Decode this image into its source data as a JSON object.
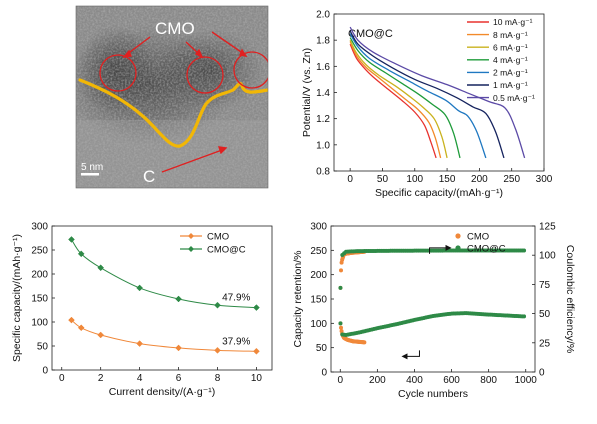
{
  "tem": {
    "label_top": "CMO",
    "label_bottom": "C",
    "scale_bar": "5 nm"
  },
  "chart_data": [
    {
      "id": "discharge",
      "type": "line",
      "title": "",
      "inset_label": "CMO@C",
      "xlabel": "Specific capacity/(mAh·g⁻¹)",
      "ylabel": "Potential/V (vs. Zn)",
      "xlim": [
        -25,
        300
      ],
      "ylim": [
        0.8,
        2.0
      ],
      "xticks": [
        0,
        50,
        100,
        150,
        200,
        250,
        300
      ],
      "yticks": [
        0.8,
        1.0,
        1.2,
        1.4,
        1.6,
        1.8,
        2.0
      ],
      "legend_position": "top-right",
      "series": [
        {
          "name": "10 mA·g⁻¹",
          "color": "#e8322e",
          "points": [
            [
              0,
              1.77
            ],
            [
              10,
              1.66
            ],
            [
              25,
              1.57
            ],
            [
              40,
              1.5
            ],
            [
              60,
              1.42
            ],
            [
              80,
              1.34
            ],
            [
              100,
              1.25
            ],
            [
              115,
              1.15
            ],
            [
              125,
              1.02
            ],
            [
              133,
              0.9
            ]
          ]
        },
        {
          "name": "8 mA·g⁻¹",
          "color": "#f28a2a",
          "points": [
            [
              0,
              1.79
            ],
            [
              10,
              1.68
            ],
            [
              25,
              1.59
            ],
            [
              45,
              1.51
            ],
            [
              65,
              1.43
            ],
            [
              85,
              1.35
            ],
            [
              105,
              1.27
            ],
            [
              122,
              1.17
            ],
            [
              132,
              1.05
            ],
            [
              140,
              0.9
            ]
          ]
        },
        {
          "name": "6 mA·g⁻¹",
          "color": "#c9b21e",
          "points": [
            [
              0,
              1.8
            ],
            [
              10,
              1.7
            ],
            [
              25,
              1.61
            ],
            [
              45,
              1.53
            ],
            [
              70,
              1.45
            ],
            [
              92,
              1.37
            ],
            [
              112,
              1.29
            ],
            [
              130,
              1.2
            ],
            [
              142,
              1.06
            ],
            [
              150,
              0.9
            ]
          ]
        },
        {
          "name": "4 mA·g⁻¹",
          "color": "#1e9b3a",
          "points": [
            [
              0,
              1.82
            ],
            [
              12,
              1.72
            ],
            [
              30,
              1.63
            ],
            [
              55,
              1.55
            ],
            [
              80,
              1.47
            ],
            [
              105,
              1.39
            ],
            [
              127,
              1.31
            ],
            [
              147,
              1.23
            ],
            [
              160,
              1.09
            ],
            [
              170,
              0.9
            ]
          ]
        },
        {
          "name": "2 mA·g⁻¹",
          "color": "#1f78c1",
          "points": [
            [
              0,
              1.85
            ],
            [
              12,
              1.75
            ],
            [
              30,
              1.66
            ],
            [
              60,
              1.57
            ],
            [
              90,
              1.49
            ],
            [
              120,
              1.41
            ],
            [
              148,
              1.34
            ],
            [
              168,
              1.26
            ],
            [
              182,
              1.22
            ],
            [
              196,
              1.1
            ],
            [
              210,
              0.9
            ]
          ]
        },
        {
          "name": "1 mA·g⁻¹",
          "color": "#15235e",
          "points": [
            [
              0,
              1.87
            ],
            [
              12,
              1.77
            ],
            [
              35,
              1.68
            ],
            [
              65,
              1.59
            ],
            [
              100,
              1.5
            ],
            [
              135,
              1.43
            ],
            [
              165,
              1.36
            ],
            [
              190,
              1.29
            ],
            [
              210,
              1.24
            ],
            [
              225,
              1.1
            ],
            [
              238,
              0.9
            ]
          ]
        },
        {
          "name": "0.5 mA·g⁻¹",
          "color": "#5b4aa6",
          "points": [
            [
              0,
              1.9
            ],
            [
              12,
              1.8
            ],
            [
              35,
              1.71
            ],
            [
              70,
              1.62
            ],
            [
              110,
              1.53
            ],
            [
              150,
              1.46
            ],
            [
              185,
              1.39
            ],
            [
              215,
              1.33
            ],
            [
              240,
              1.28
            ],
            [
              256,
              1.12
            ],
            [
              270,
              0.9
            ]
          ]
        }
      ]
    },
    {
      "id": "rate",
      "type": "line",
      "title": "",
      "xlabel": "Current density/(A·g⁻¹)",
      "ylabel": "Specific capacity/(mAh·g⁻¹)",
      "xlim": [
        -0.5,
        10.8
      ],
      "ylim": [
        0,
        300
      ],
      "xticks": [
        0,
        2,
        4,
        6,
        8,
        10
      ],
      "yticks": [
        0,
        50,
        100,
        150,
        200,
        250,
        300
      ],
      "legend_position": "top-right",
      "series": [
        {
          "name": "CMO",
          "color": "#f0883a",
          "x": [
            0.5,
            1,
            2,
            4,
            6,
            8,
            10
          ],
          "values": [
            104,
            88,
            73,
            55,
            46,
            41,
            39
          ],
          "annotation": "37.9%"
        },
        {
          "name": "CMO@C",
          "color": "#2e8a47",
          "x": [
            0.5,
            1,
            2,
            4,
            6,
            8,
            10
          ],
          "values": [
            272,
            242,
            213,
            171,
            148,
            135,
            130
          ],
          "annotation": "47.9%"
        }
      ]
    },
    {
      "id": "cycling",
      "type": "scatter",
      "title": "",
      "xlabel": "Cycle numbers",
      "ylabel": "Capacity retention/%",
      "ylabel_right": "Coulombic efficiency/%",
      "xlim": [
        -50,
        1050
      ],
      "ylim": [
        0,
        300
      ],
      "ylim_right": [
        0,
        125
      ],
      "xticks": [
        0,
        200,
        400,
        600,
        800,
        1000
      ],
      "yticks": [
        0,
        50,
        100,
        150,
        200,
        250,
        300
      ],
      "yticks_right": [
        0,
        25,
        50,
        75,
        100,
        125
      ],
      "legend_position": "top-right",
      "series": [
        {
          "name": "CMO",
          "color": "#f0883a",
          "retention": [
            [
              1,
              100
            ],
            [
              5,
              88
            ],
            [
              10,
              78
            ],
            [
              20,
              70
            ],
            [
              40,
              66
            ],
            [
              70,
              63
            ],
            [
              100,
              62
            ],
            [
              130,
              61
            ]
          ],
          "efficiency": [
            [
              1,
              72
            ],
            [
              5,
              92
            ],
            [
              10,
              96
            ],
            [
              20,
              101
            ],
            [
              60,
              102
            ],
            [
              130,
              103
            ]
          ]
        },
        {
          "name": "CMO@C",
          "color": "#2e8a47",
          "retention": [
            [
              1,
              100
            ],
            [
              10,
              77
            ],
            [
              30,
              76
            ],
            [
              100,
              81
            ],
            [
              200,
              90
            ],
            [
              300,
              98
            ],
            [
              400,
              107
            ],
            [
              500,
              115
            ],
            [
              600,
              120
            ],
            [
              680,
              121
            ],
            [
              800,
              118
            ],
            [
              900,
              116
            ],
            [
              1000,
              114
            ]
          ],
          "efficiency": [
            [
              1,
              72
            ],
            [
              5,
              94
            ],
            [
              10,
              100
            ],
            [
              30,
              103
            ],
            [
              100,
              103.5
            ],
            [
              300,
              103.8
            ],
            [
              600,
              104
            ],
            [
              1000,
              104
            ]
          ]
        }
      ]
    }
  ]
}
